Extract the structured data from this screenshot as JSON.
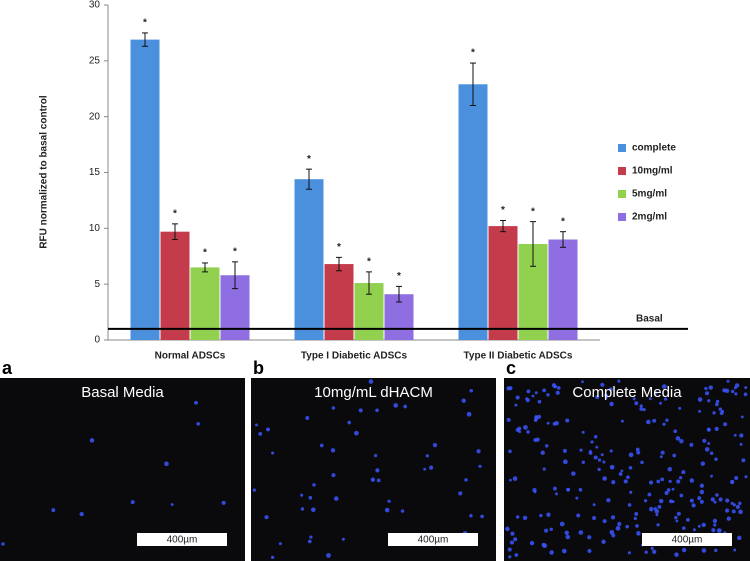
{
  "chart_data": {
    "type": "bar",
    "ylabel": "RFU normalized to basal control",
    "categories": [
      "Normal ADSCs",
      "Type I Diabetic ADSCs",
      "Type II Diabetic ADSCs"
    ],
    "series": [
      {
        "name": "complete",
        "color": "#4a90dc",
        "values": [
          26.9,
          14.4,
          22.9
        ],
        "errors": [
          0.6,
          0.9,
          1.9
        ]
      },
      {
        "name": "10mg/ml",
        "color": "#c43c4c",
        "values": [
          9.7,
          6.8,
          10.2
        ],
        "errors": [
          0.7,
          0.6,
          0.5
        ]
      },
      {
        "name": "5mg/ml",
        "color": "#92d050",
        "values": [
          6.5,
          5.1,
          8.6
        ],
        "errors": [
          0.4,
          1.0,
          2.0
        ]
      },
      {
        "name": "2mg/ml",
        "color": "#8e6ee0",
        "values": [
          5.8,
          4.1,
          9.0
        ],
        "errors": [
          1.2,
          0.7,
          0.7
        ]
      }
    ],
    "annotation": "*",
    "basal": {
      "label": "Basal",
      "value": 1
    },
    "ylim": [
      0,
      30
    ],
    "yticks": [
      0,
      5,
      10,
      15,
      20,
      25,
      30
    ],
    "grid": false,
    "legend": "right"
  },
  "panels": [
    {
      "letter": "a",
      "caption": "Basal Media",
      "scale_bar": "400µm"
    },
    {
      "letter": "b",
      "caption": "10mg/mL dHACM",
      "scale_bar": "400µm"
    },
    {
      "letter": "c",
      "caption": "Complete Media",
      "scale_bar": "400µm"
    }
  ]
}
